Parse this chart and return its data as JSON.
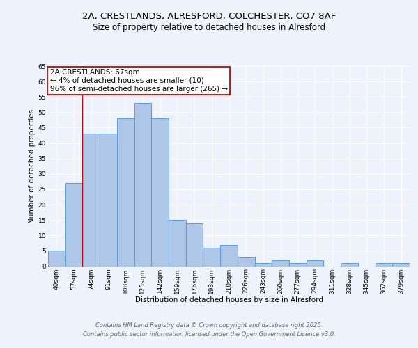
{
  "title1": "2A, CRESTLANDS, ALRESFORD, COLCHESTER, CO7 8AF",
  "title2": "Size of property relative to detached houses in Alresford",
  "xlabel": "Distribution of detached houses by size in Alresford",
  "ylabel": "Number of detached properties",
  "categories": [
    "40sqm",
    "57sqm",
    "74sqm",
    "91sqm",
    "108sqm",
    "125sqm",
    "142sqm",
    "159sqm",
    "176sqm",
    "193sqm",
    "210sqm",
    "226sqm",
    "243sqm",
    "260sqm",
    "277sqm",
    "294sqm",
    "311sqm",
    "328sqm",
    "345sqm",
    "362sqm",
    "379sqm"
  ],
  "values": [
    5,
    27,
    43,
    43,
    48,
    53,
    48,
    15,
    14,
    6,
    7,
    3,
    1,
    2,
    1,
    2,
    0,
    1,
    0,
    1,
    1
  ],
  "bar_color": "#aec6e8",
  "bar_edge_color": "#5b9bd5",
  "red_line_x": 1.5,
  "annotation_text": "2A CRESTLANDS: 67sqm\n← 4% of detached houses are smaller (10)\n96% of semi-detached houses are larger (265) →",
  "annotation_box_color": "#ffffff",
  "annotation_box_edge_color": "#cc0000",
  "ylim": [
    0,
    65
  ],
  "yticks": [
    0,
    5,
    10,
    15,
    20,
    25,
    30,
    35,
    40,
    45,
    50,
    55,
    60,
    65
  ],
  "footer_line1": "Contains HM Land Registry data © Crown copyright and database right 2025.",
  "footer_line2": "Contains public sector information licensed under the Open Government Licence v3.0.",
  "bg_color": "#eef2fa",
  "plot_bg_color": "#eef2fa",
  "grid_color": "#ffffff",
  "title_fontsize": 9.5,
  "subtitle_fontsize": 8.5,
  "axis_label_fontsize": 7.5,
  "tick_fontsize": 6.5,
  "annot_fontsize": 7.5,
  "footer_fontsize": 6
}
